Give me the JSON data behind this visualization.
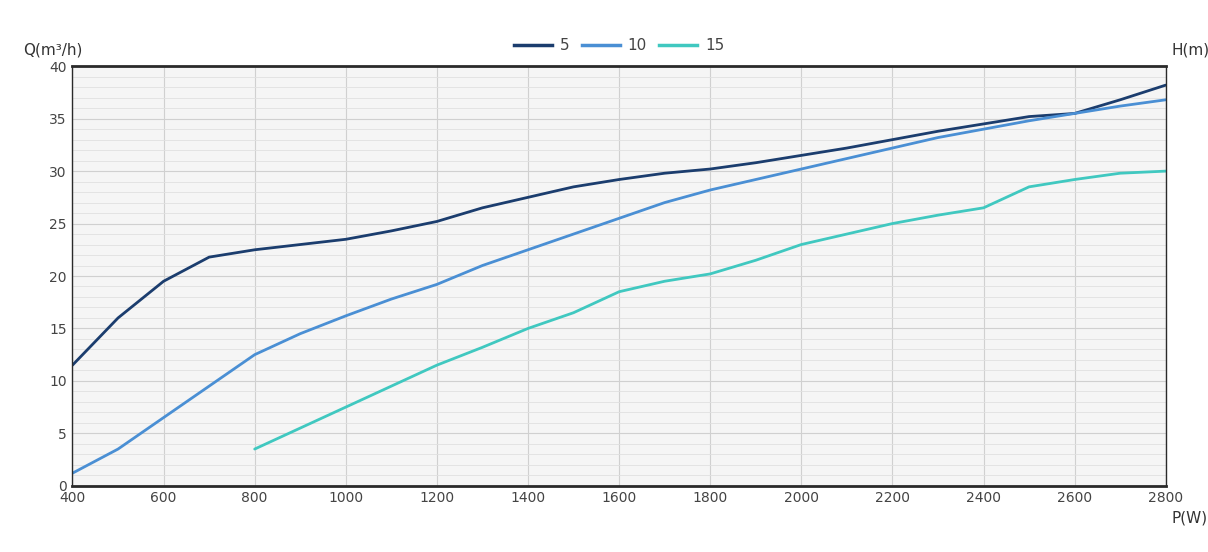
{
  "xlabel": "P(W)",
  "ylabel_left": "Q(m³/h)",
  "ylabel_right": "H(m)",
  "xlim": [
    400,
    2800
  ],
  "ylim": [
    0,
    40
  ],
  "xticks": [
    400,
    600,
    800,
    1000,
    1200,
    1400,
    1600,
    1800,
    2000,
    2200,
    2400,
    2600,
    2800
  ],
  "yticks": [
    0,
    5,
    10,
    15,
    20,
    25,
    30,
    35,
    40
  ],
  "plot_bg_color": "#f5f5f5",
  "fig_bg_color": "#ffffff",
  "grid_color": "#d0d0d0",
  "minor_grid_color": "#e0e0e0",
  "spine_color": "#2a2a2a",
  "tick_color": "#444444",
  "label_color": "#333333",
  "series": [
    {
      "label": "5",
      "color": "#1b3d6e",
      "linewidth": 2.0,
      "x": [
        400,
        500,
        600,
        700,
        800,
        900,
        1000,
        1100,
        1200,
        1300,
        1400,
        1500,
        1600,
        1700,
        1800,
        1900,
        2000,
        2100,
        2200,
        2300,
        2400,
        2500,
        2600,
        2700,
        2800
      ],
      "y": [
        11.5,
        16.0,
        19.5,
        21.8,
        22.5,
        23.0,
        23.5,
        24.3,
        25.2,
        26.5,
        27.5,
        28.5,
        29.2,
        29.8,
        30.2,
        30.8,
        31.5,
        32.2,
        33.0,
        33.8,
        34.5,
        35.2,
        35.5,
        36.8,
        38.2
      ]
    },
    {
      "label": "10",
      "color": "#4a8fd4",
      "linewidth": 2.0,
      "x": [
        400,
        500,
        600,
        700,
        800,
        900,
        1000,
        1100,
        1200,
        1300,
        1400,
        1500,
        1600,
        1700,
        1800,
        1900,
        2000,
        2100,
        2200,
        2300,
        2400,
        2500,
        2600,
        2700,
        2800
      ],
      "y": [
        1.2,
        3.5,
        6.5,
        9.5,
        12.5,
        14.5,
        16.2,
        17.8,
        19.2,
        21.0,
        22.5,
        24.0,
        25.5,
        27.0,
        28.2,
        29.2,
        30.2,
        31.2,
        32.2,
        33.2,
        34.0,
        34.8,
        35.5,
        36.2,
        36.8
      ]
    },
    {
      "label": "15",
      "color": "#40c8c0",
      "linewidth": 2.0,
      "x": [
        800,
        900,
        1000,
        1100,
        1200,
        1300,
        1400,
        1500,
        1600,
        1700,
        1800,
        1900,
        2000,
        2100,
        2200,
        2300,
        2400,
        2500,
        2600,
        2700,
        2800
      ],
      "y": [
        3.5,
        5.5,
        7.5,
        9.5,
        11.5,
        13.2,
        15.0,
        16.5,
        18.5,
        19.5,
        20.2,
        21.5,
        23.0,
        24.0,
        25.0,
        25.8,
        26.5,
        28.5,
        29.2,
        29.8,
        30.0
      ]
    }
  ]
}
